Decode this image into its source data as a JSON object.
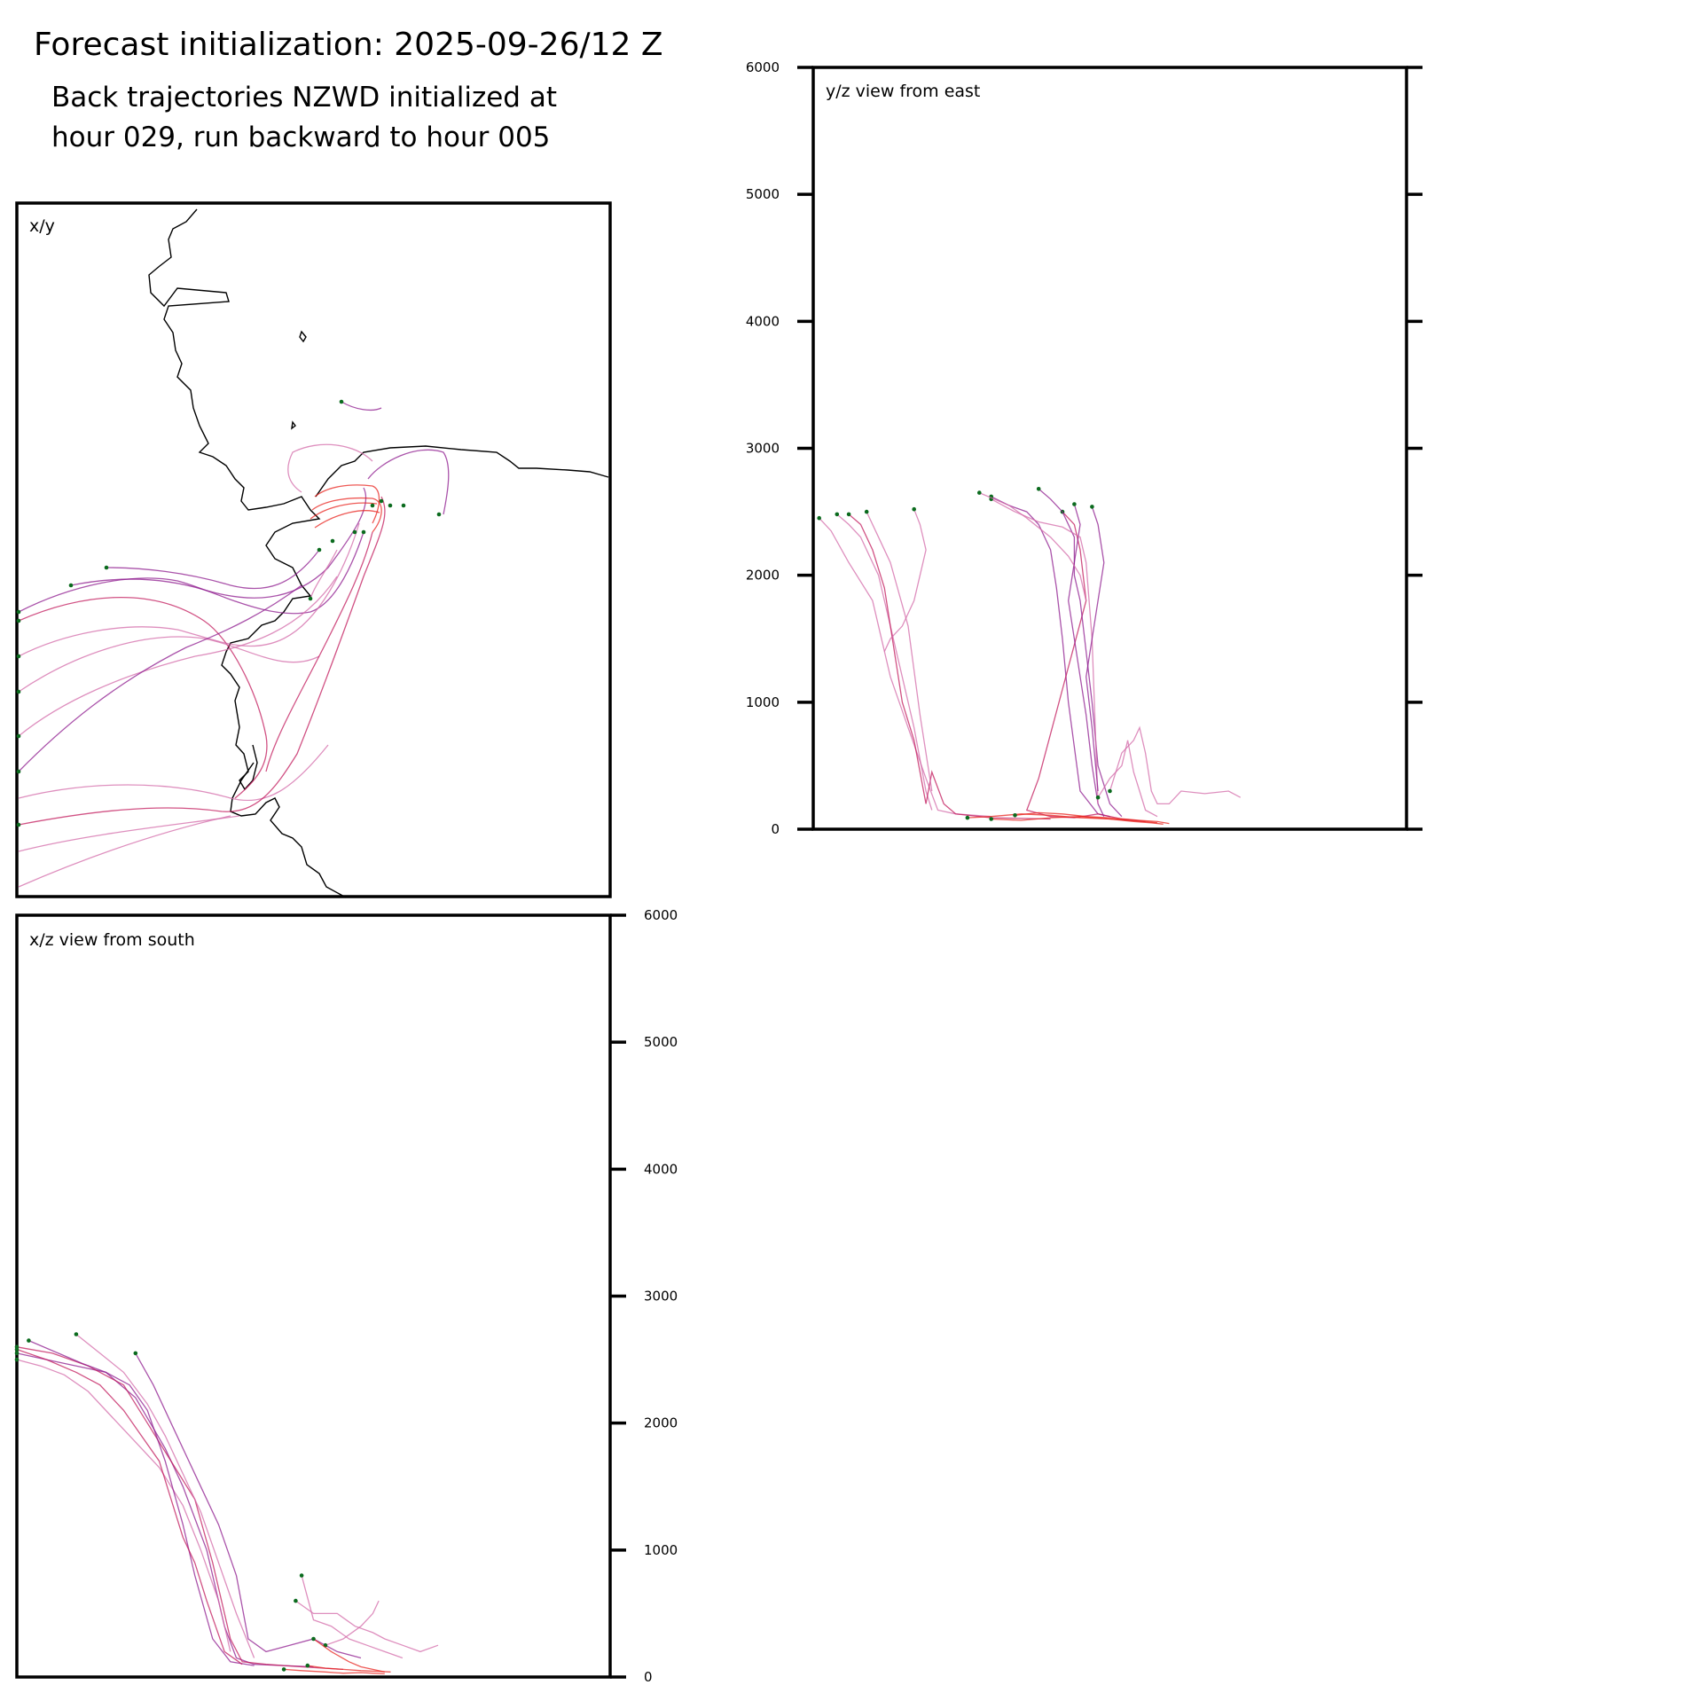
{
  "header": {
    "title": "Forecast initialization: 2025-09-26/12 Z",
    "subtitle_line1": "Back trajectories NZWD initialized at",
    "subtitle_line2": "hour 029, run backward to hour 005"
  },
  "colors": {
    "trajectory_red": "#e8221c",
    "trajectory_crimson": "#c2185b",
    "trajectory_purple": "#8e1a8e",
    "trajectory_pink": "#d36aa8",
    "endpoint_marker": "#0b6b1e",
    "coastline": "#000000"
  },
  "chart_data": [
    {
      "type": "line",
      "panel": "xy",
      "label": "x/y",
      "note_no_axes": true
    },
    {
      "type": "line",
      "panel": "yz",
      "label": "y/z view from east",
      "ylim": [
        0,
        6000
      ],
      "yticks": [
        "0",
        "1000",
        "2000",
        "3000",
        "4000",
        "5000",
        "6000"
      ],
      "tick_side": "left",
      "series": [
        {
          "color": "trajectory_pink",
          "x": [
            0.01,
            0.03,
            0.06,
            0.1,
            0.13,
            0.16,
            0.19,
            0.21,
            0.24,
            0.3
          ],
          "y": [
            2450,
            2350,
            2100,
            1800,
            1200,
            800,
            400,
            150,
            120,
            100
          ]
        },
        {
          "color": "trajectory_pink",
          "x": [
            0.04,
            0.06,
            0.08,
            0.11,
            0.14,
            0.17,
            0.19,
            0.2
          ],
          "y": [
            2480,
            2400,
            2300,
            2000,
            1400,
            800,
            300,
            150
          ]
        },
        {
          "color": "trajectory_crimson",
          "x": [
            0.06,
            0.08,
            0.1,
            0.12,
            0.15,
            0.17,
            0.19,
            0.2,
            0.22,
            0.24,
            0.3,
            0.4
          ],
          "y": [
            2480,
            2400,
            2200,
            1900,
            1000,
            700,
            200,
            450,
            200,
            120,
            90,
            80
          ]
        },
        {
          "color": "trajectory_pink",
          "x": [
            0.09,
            0.11,
            0.13,
            0.16,
            0.18,
            0.2
          ],
          "y": [
            2500,
            2300,
            2100,
            1600,
            900,
            300
          ]
        },
        {
          "color": "trajectory_pink",
          "x": [
            0.17,
            0.18,
            0.19,
            0.18,
            0.17,
            0.15,
            0.13,
            0.12
          ],
          "y": [
            2520,
            2400,
            2200,
            2000,
            1800,
            1600,
            1500,
            1400
          ]
        },
        {
          "color": "trajectory_purple",
          "x": [
            0.3,
            0.33,
            0.36,
            0.38,
            0.4,
            0.41,
            0.42,
            0.43,
            0.45,
            0.48,
            0.5
          ],
          "y": [
            2620,
            2550,
            2500,
            2400,
            2200,
            1900,
            1500,
            1000,
            300,
            120,
            100
          ]
        },
        {
          "color": "trajectory_crimson",
          "x": [
            0.42,
            0.44,
            0.45,
            0.46,
            0.38,
            0.36,
            0.4,
            0.44,
            0.48,
            0.52,
            0.56
          ],
          "y": [
            2500,
            2400,
            2200,
            1800,
            400,
            150,
            100,
            90,
            120,
            80,
            60
          ]
        },
        {
          "color": "trajectory_purple",
          "x": [
            0.38,
            0.4,
            0.42,
            0.44,
            0.44,
            0.45,
            0.46,
            0.47,
            0.48,
            0.5,
            0.52
          ],
          "y": [
            2680,
            2600,
            2500,
            2300,
            2000,
            1800,
            1400,
            1000,
            500,
            200,
            100
          ]
        },
        {
          "color": "trajectory_purple",
          "x": [
            0.44,
            0.45,
            0.44,
            0.43,
            0.44,
            0.45,
            0.46,
            0.47,
            0.48,
            0.49
          ],
          "y": [
            2560,
            2400,
            2100,
            1800,
            1500,
            1200,
            900,
            500,
            200,
            100
          ]
        },
        {
          "color": "trajectory_pink",
          "x": [
            0.3,
            0.34,
            0.38,
            0.42,
            0.45,
            0.46,
            0.47,
            0.48
          ],
          "y": [
            2600,
            2500,
            2420,
            2380,
            2300,
            2100,
            1500,
            200
          ]
        },
        {
          "color": "trajectory_pink",
          "x": [
            0.28,
            0.33,
            0.36,
            0.4,
            0.43,
            0.45,
            0.46
          ],
          "y": [
            2650,
            2550,
            2450,
            2300,
            2150,
            2000,
            1800
          ]
        },
        {
          "color": "trajectory_purple",
          "x": [
            0.47,
            0.48,
            0.49,
            0.48,
            0.47,
            0.46,
            0.47,
            0.48
          ],
          "y": [
            2540,
            2400,
            2100,
            1800,
            1500,
            1200,
            800,
            300
          ]
        },
        {
          "color": "trajectory_pink",
          "x": [
            0.5,
            0.52,
            0.54,
            0.55,
            0.56,
            0.57,
            0.58,
            0.6,
            0.62,
            0.66,
            0.7,
            0.72
          ],
          "y": [
            300,
            600,
            700,
            800,
            600,
            300,
            200,
            200,
            300,
            280,
            300,
            250
          ]
        },
        {
          "color": "trajectory_pink",
          "x": [
            0.48,
            0.5,
            0.52,
            0.53,
            0.54,
            0.55,
            0.56,
            0.58
          ],
          "y": [
            250,
            400,
            500,
            700,
            450,
            300,
            150,
            100
          ]
        },
        {
          "color": "trajectory_red",
          "x": [
            0.26,
            0.3,
            0.35,
            0.4,
            0.45,
            0.5,
            0.53,
            0.56,
            0.58
          ],
          "y": [
            90,
            100,
            120,
            110,
            90,
            80,
            70,
            60,
            50
          ]
        },
        {
          "color": "trajectory_red",
          "x": [
            0.3,
            0.35,
            0.4,
            0.45,
            0.5,
            0.54,
            0.57,
            0.59
          ],
          "y": [
            80,
            70,
            90,
            100,
            80,
            60,
            50,
            40
          ]
        },
        {
          "color": "trajectory_red",
          "x": [
            0.34,
            0.38,
            0.42,
            0.46,
            0.5,
            0.55,
            0.58,
            0.6
          ],
          "y": [
            110,
            130,
            120,
            100,
            90,
            70,
            60,
            45
          ]
        }
      ]
    },
    {
      "type": "line",
      "panel": "xz",
      "label": "x/z view from south",
      "ylim": [
        0,
        6000
      ],
      "yticks": [
        "0",
        "1000",
        "2000",
        "3000",
        "4000",
        "5000",
        "6000"
      ],
      "tick_side": "right",
      "series": [
        {
          "color": "trajectory_purple",
          "x": [
            0.0,
            0.05,
            0.1,
            0.15,
            0.2,
            0.25,
            0.28,
            0.32,
            0.35,
            0.37,
            0.4,
            0.45,
            0.5
          ],
          "y": [
            2550,
            2500,
            2450,
            2400,
            2200,
            1800,
            1500,
            1000,
            400,
            150,
            100,
            90,
            80
          ]
        },
        {
          "color": "trajectory_crimson",
          "x": [
            0.0,
            0.06,
            0.12,
            0.18,
            0.22,
            0.26,
            0.3,
            0.33,
            0.36,
            0.38,
            0.42,
            0.48,
            0.55
          ],
          "y": [
            2600,
            2550,
            2450,
            2300,
            2000,
            1700,
            1400,
            900,
            300,
            120,
            100,
            80,
            60
          ]
        },
        {
          "color": "trajectory_pink",
          "x": [
            0.0,
            0.04,
            0.08,
            0.12,
            0.16,
            0.2,
            0.24,
            0.28,
            0.31,
            0.34,
            0.36
          ],
          "y": [
            2500,
            2450,
            2380,
            2250,
            2050,
            1850,
            1650,
            1350,
            1000,
            600,
            200
          ]
        },
        {
          "color": "trajectory_purple",
          "x": [
            0.02,
            0.07,
            0.11,
            0.15,
            0.19,
            0.22,
            0.25,
            0.28,
            0.3,
            0.33,
            0.36,
            0.4
          ],
          "y": [
            2650,
            2550,
            2470,
            2400,
            2300,
            2100,
            1700,
            1200,
            800,
            300,
            120,
            90
          ]
        },
        {
          "color": "trajectory_crimson",
          "x": [
            0.0,
            0.05,
            0.1,
            0.14,
            0.18,
            0.21,
            0.24,
            0.26,
            0.28,
            0.3,
            0.32,
            0.35,
            0.38
          ],
          "y": [
            2580,
            2500,
            2400,
            2300,
            2100,
            1900,
            1700,
            1400,
            1100,
            900,
            600,
            200,
            100
          ]
        },
        {
          "color": "trajectory_pink",
          "x": [
            0.1,
            0.14,
            0.18,
            0.22,
            0.25,
            0.28,
            0.31,
            0.34,
            0.37,
            0.4
          ],
          "y": [
            2700,
            2550,
            2400,
            2150,
            1900,
            1600,
            1300,
            900,
            500,
            150
          ]
        },
        {
          "color": "trajectory_purple",
          "x": [
            0.2,
            0.23,
            0.26,
            0.29,
            0.31,
            0.34,
            0.37,
            0.39,
            0.42,
            0.46,
            0.5,
            0.54,
            0.58
          ],
          "y": [
            2550,
            2300,
            2000,
            1700,
            1500,
            1200,
            800,
            300,
            200,
            250,
            300,
            200,
            150
          ]
        },
        {
          "color": "trajectory_pink",
          "x": [
            0.47,
            0.5,
            0.54,
            0.57,
            0.6,
            0.62,
            0.65,
            0.68,
            0.71
          ],
          "y": [
            600,
            500,
            500,
            400,
            350,
            300,
            250,
            200,
            250
          ]
        },
        {
          "color": "trajectory_pink",
          "x": [
            0.48,
            0.5,
            0.53,
            0.56,
            0.59,
            0.62,
            0.65
          ],
          "y": [
            800,
            450,
            400,
            300,
            250,
            200,
            150
          ]
        },
        {
          "color": "trajectory_pink",
          "x": [
            0.52,
            0.55,
            0.58,
            0.6,
            0.61,
            0.6,
            0.58,
            0.55
          ],
          "y": [
            250,
            300,
            400,
            500,
            600,
            500,
            400,
            300
          ]
        },
        {
          "color": "trajectory_red",
          "x": [
            0.5,
            0.53,
            0.56,
            0.58,
            0.6,
            0.62
          ],
          "y": [
            300,
            200,
            120,
            80,
            60,
            40
          ]
        },
        {
          "color": "trajectory_red",
          "x": [
            0.45,
            0.48,
            0.52,
            0.55,
            0.58,
            0.6,
            0.62
          ],
          "y": [
            60,
            50,
            40,
            30,
            35,
            30,
            25
          ]
        },
        {
          "color": "trajectory_red",
          "x": [
            0.49,
            0.52,
            0.55,
            0.58,
            0.61,
            0.63
          ],
          "y": [
            90,
            70,
            60,
            50,
            45,
            40
          ]
        }
      ]
    }
  ]
}
